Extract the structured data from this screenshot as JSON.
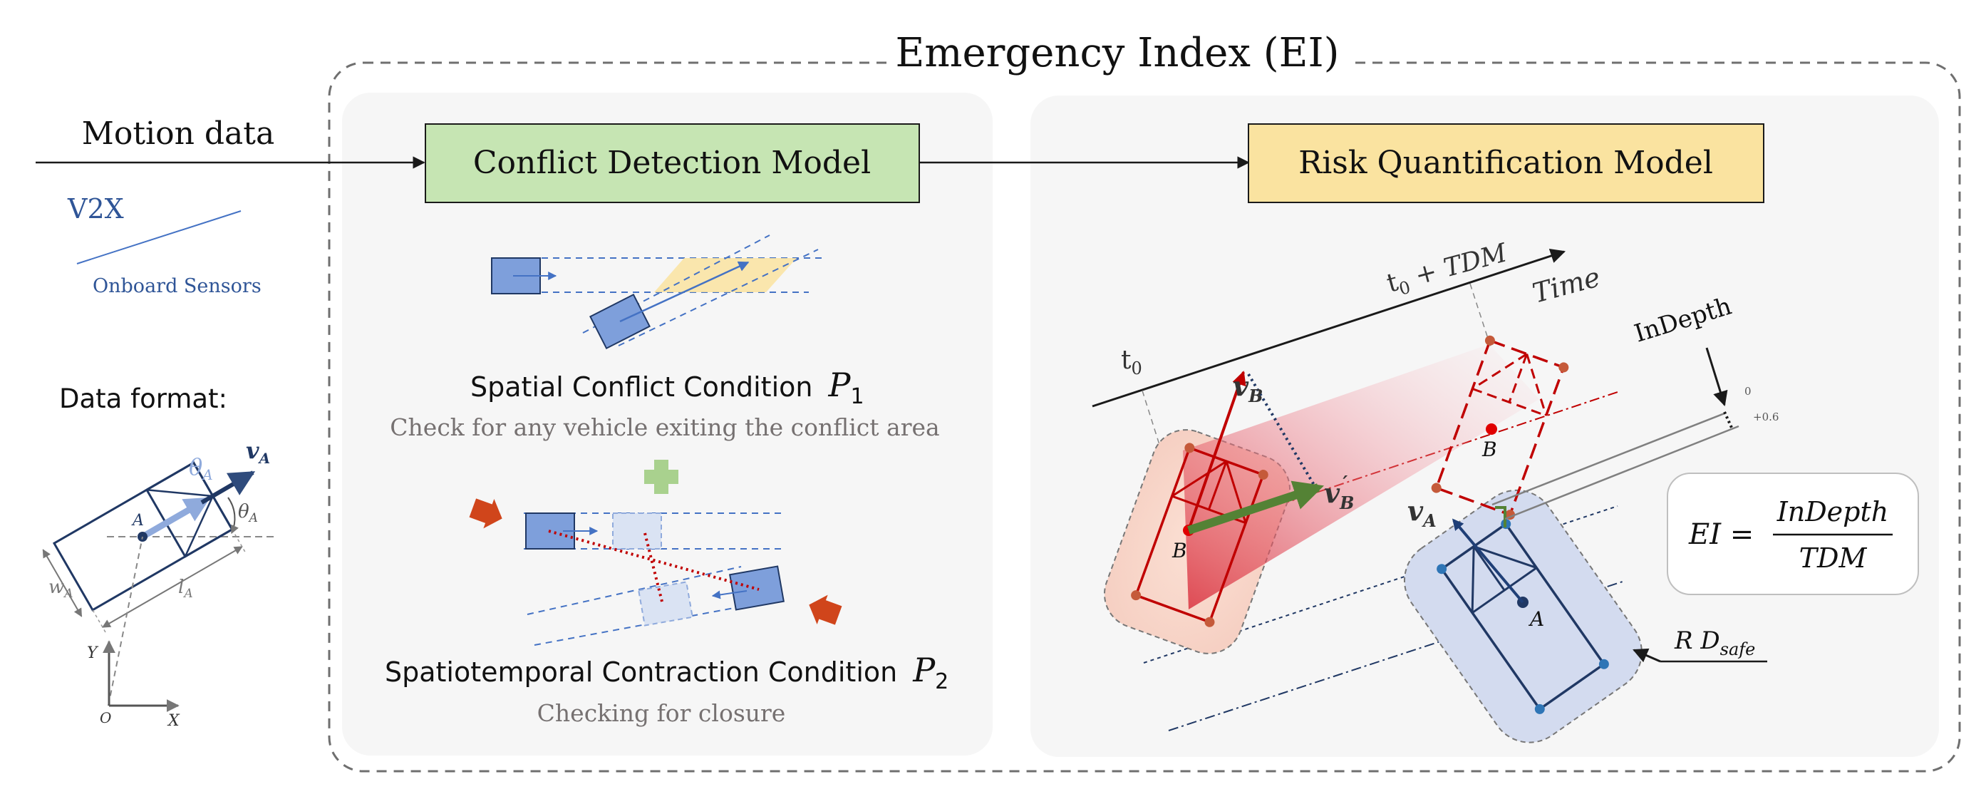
{
  "title": "Emergency Index (EI)",
  "input": {
    "motion_label": "Motion data",
    "v2x_label": "V2X",
    "onboard_label": "Onboard Sensors",
    "format_label": "Data format:"
  },
  "vehicle_diagram": {
    "theta_label": "θ",
    "theta_sub": "A",
    "v_label": "v",
    "v_sub": "A",
    "point_label": "A",
    "width_label": "w",
    "width_sub": "A",
    "length_label": "l",
    "length_sub": "A",
    "axis_y": "Y",
    "axis_x": "X",
    "origin": "O"
  },
  "conflict_model": {
    "box_label": "Conflict Detection Model",
    "cond1_label": "Spatial Conflict Condition",
    "cond1_symbol": "P",
    "cond1_sub": "1",
    "cond1_desc": "Check for any vehicle exiting the conflict area",
    "cond2_label": "Spatiotemporal Contraction Condition",
    "cond2_symbol": "P",
    "cond2_sub": "2",
    "cond2_desc": "Checking for closure"
  },
  "risk_model": {
    "box_label": "Risk Quantification Model",
    "time_label": "Time",
    "t0_label": "t",
    "t0_sub": "0",
    "t0_tdm_label": "t",
    "t0_tdm_sub": "0",
    "t0_tdm_rest": " + TDM",
    "vb_label": "v",
    "vb_sub": "B",
    "vb_prime_label": "v",
    "vb_prime_sub": "B",
    "va_label": "v",
    "va_sub": "A",
    "point_a": "A",
    "point_b": "B",
    "point_b_future": "B",
    "indepth_label": "InDepth",
    "scale_zero": "0",
    "scale_value": "+0.6",
    "rd_label": "R D",
    "rd_sub": "safe",
    "formula_lhs": "EI =",
    "formula_num": "InDepth",
    "formula_den": "TDM"
  },
  "colors": {
    "green_box": "#c6e5b3",
    "yellow_box": "#fae3a0",
    "vehicle_blue": "#4472c4",
    "vehicle_red": "#c00000",
    "text_navy": "#2f4b7c",
    "panel_bg": "#f6f6f6"
  }
}
